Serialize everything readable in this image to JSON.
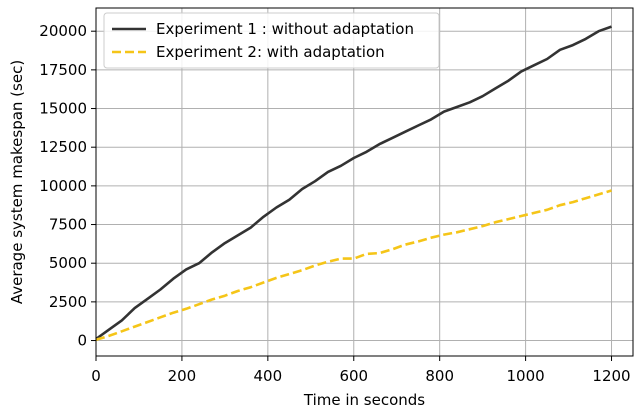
{
  "chart_data": {
    "type": "line",
    "title": "",
    "xlabel": "Time in seconds",
    "ylabel": "Average system makespan (sec)",
    "xlim": [
      0,
      1250
    ],
    "ylim": [
      -1000,
      21500
    ],
    "xticks": [
      0,
      200,
      400,
      600,
      800,
      1000,
      1200
    ],
    "xtick_labels": [
      "0",
      "200",
      "400",
      "600",
      "800",
      "1000",
      "1200"
    ],
    "yticks": [
      0,
      2500,
      5000,
      7500,
      10000,
      12500,
      15000,
      17500,
      20000
    ],
    "ytick_labels": [
      "0",
      "2500",
      "5000",
      "7500",
      "10000",
      "12500",
      "15000",
      "17500",
      "20000"
    ],
    "grid": true,
    "legend": "top-left",
    "series": [
      {
        "name": "Experiment 1 : without adaptation",
        "color": "#333333",
        "style": "solid",
        "x": [
          0,
          30,
          60,
          90,
          120,
          150,
          180,
          210,
          240,
          270,
          300,
          330,
          360,
          390,
          420,
          450,
          480,
          510,
          540,
          570,
          600,
          630,
          660,
          690,
          720,
          750,
          780,
          810,
          840,
          870,
          900,
          930,
          960,
          990,
          1020,
          1050,
          1080,
          1110,
          1140,
          1170,
          1200
        ],
        "y": [
          100,
          700,
          1300,
          2100,
          2700,
          3300,
          4000,
          4600,
          5000,
          5700,
          6300,
          6800,
          7300,
          8000,
          8600,
          9100,
          9800,
          10300,
          10900,
          11300,
          11800,
          12200,
          12700,
          13100,
          13500,
          13900,
          14300,
          14800,
          15100,
          15400,
          15800,
          16300,
          16800,
          17400,
          17800,
          18200,
          18800,
          19100,
          19500,
          20000,
          20300
        ]
      },
      {
        "name": "Experiment 2: with adaptation",
        "color": "#f5c518",
        "style": "dashed",
        "x": [
          0,
          30,
          60,
          90,
          120,
          150,
          180,
          210,
          240,
          270,
          300,
          330,
          360,
          390,
          420,
          450,
          480,
          510,
          540,
          570,
          600,
          630,
          660,
          690,
          720,
          750,
          780,
          810,
          840,
          870,
          900,
          930,
          960,
          990,
          1020,
          1050,
          1080,
          1110,
          1140,
          1170,
          1200
        ],
        "y": [
          50,
          300,
          600,
          900,
          1200,
          1500,
          1800,
          2050,
          2350,
          2650,
          2900,
          3200,
          3450,
          3750,
          4050,
          4300,
          4550,
          4850,
          5100,
          5300,
          5300,
          5600,
          5650,
          5900,
          6200,
          6400,
          6650,
          6850,
          7000,
          7200,
          7400,
          7650,
          7850,
          8050,
          8250,
          8450,
          8750,
          8950,
          9200,
          9450,
          9700
        ]
      }
    ]
  }
}
